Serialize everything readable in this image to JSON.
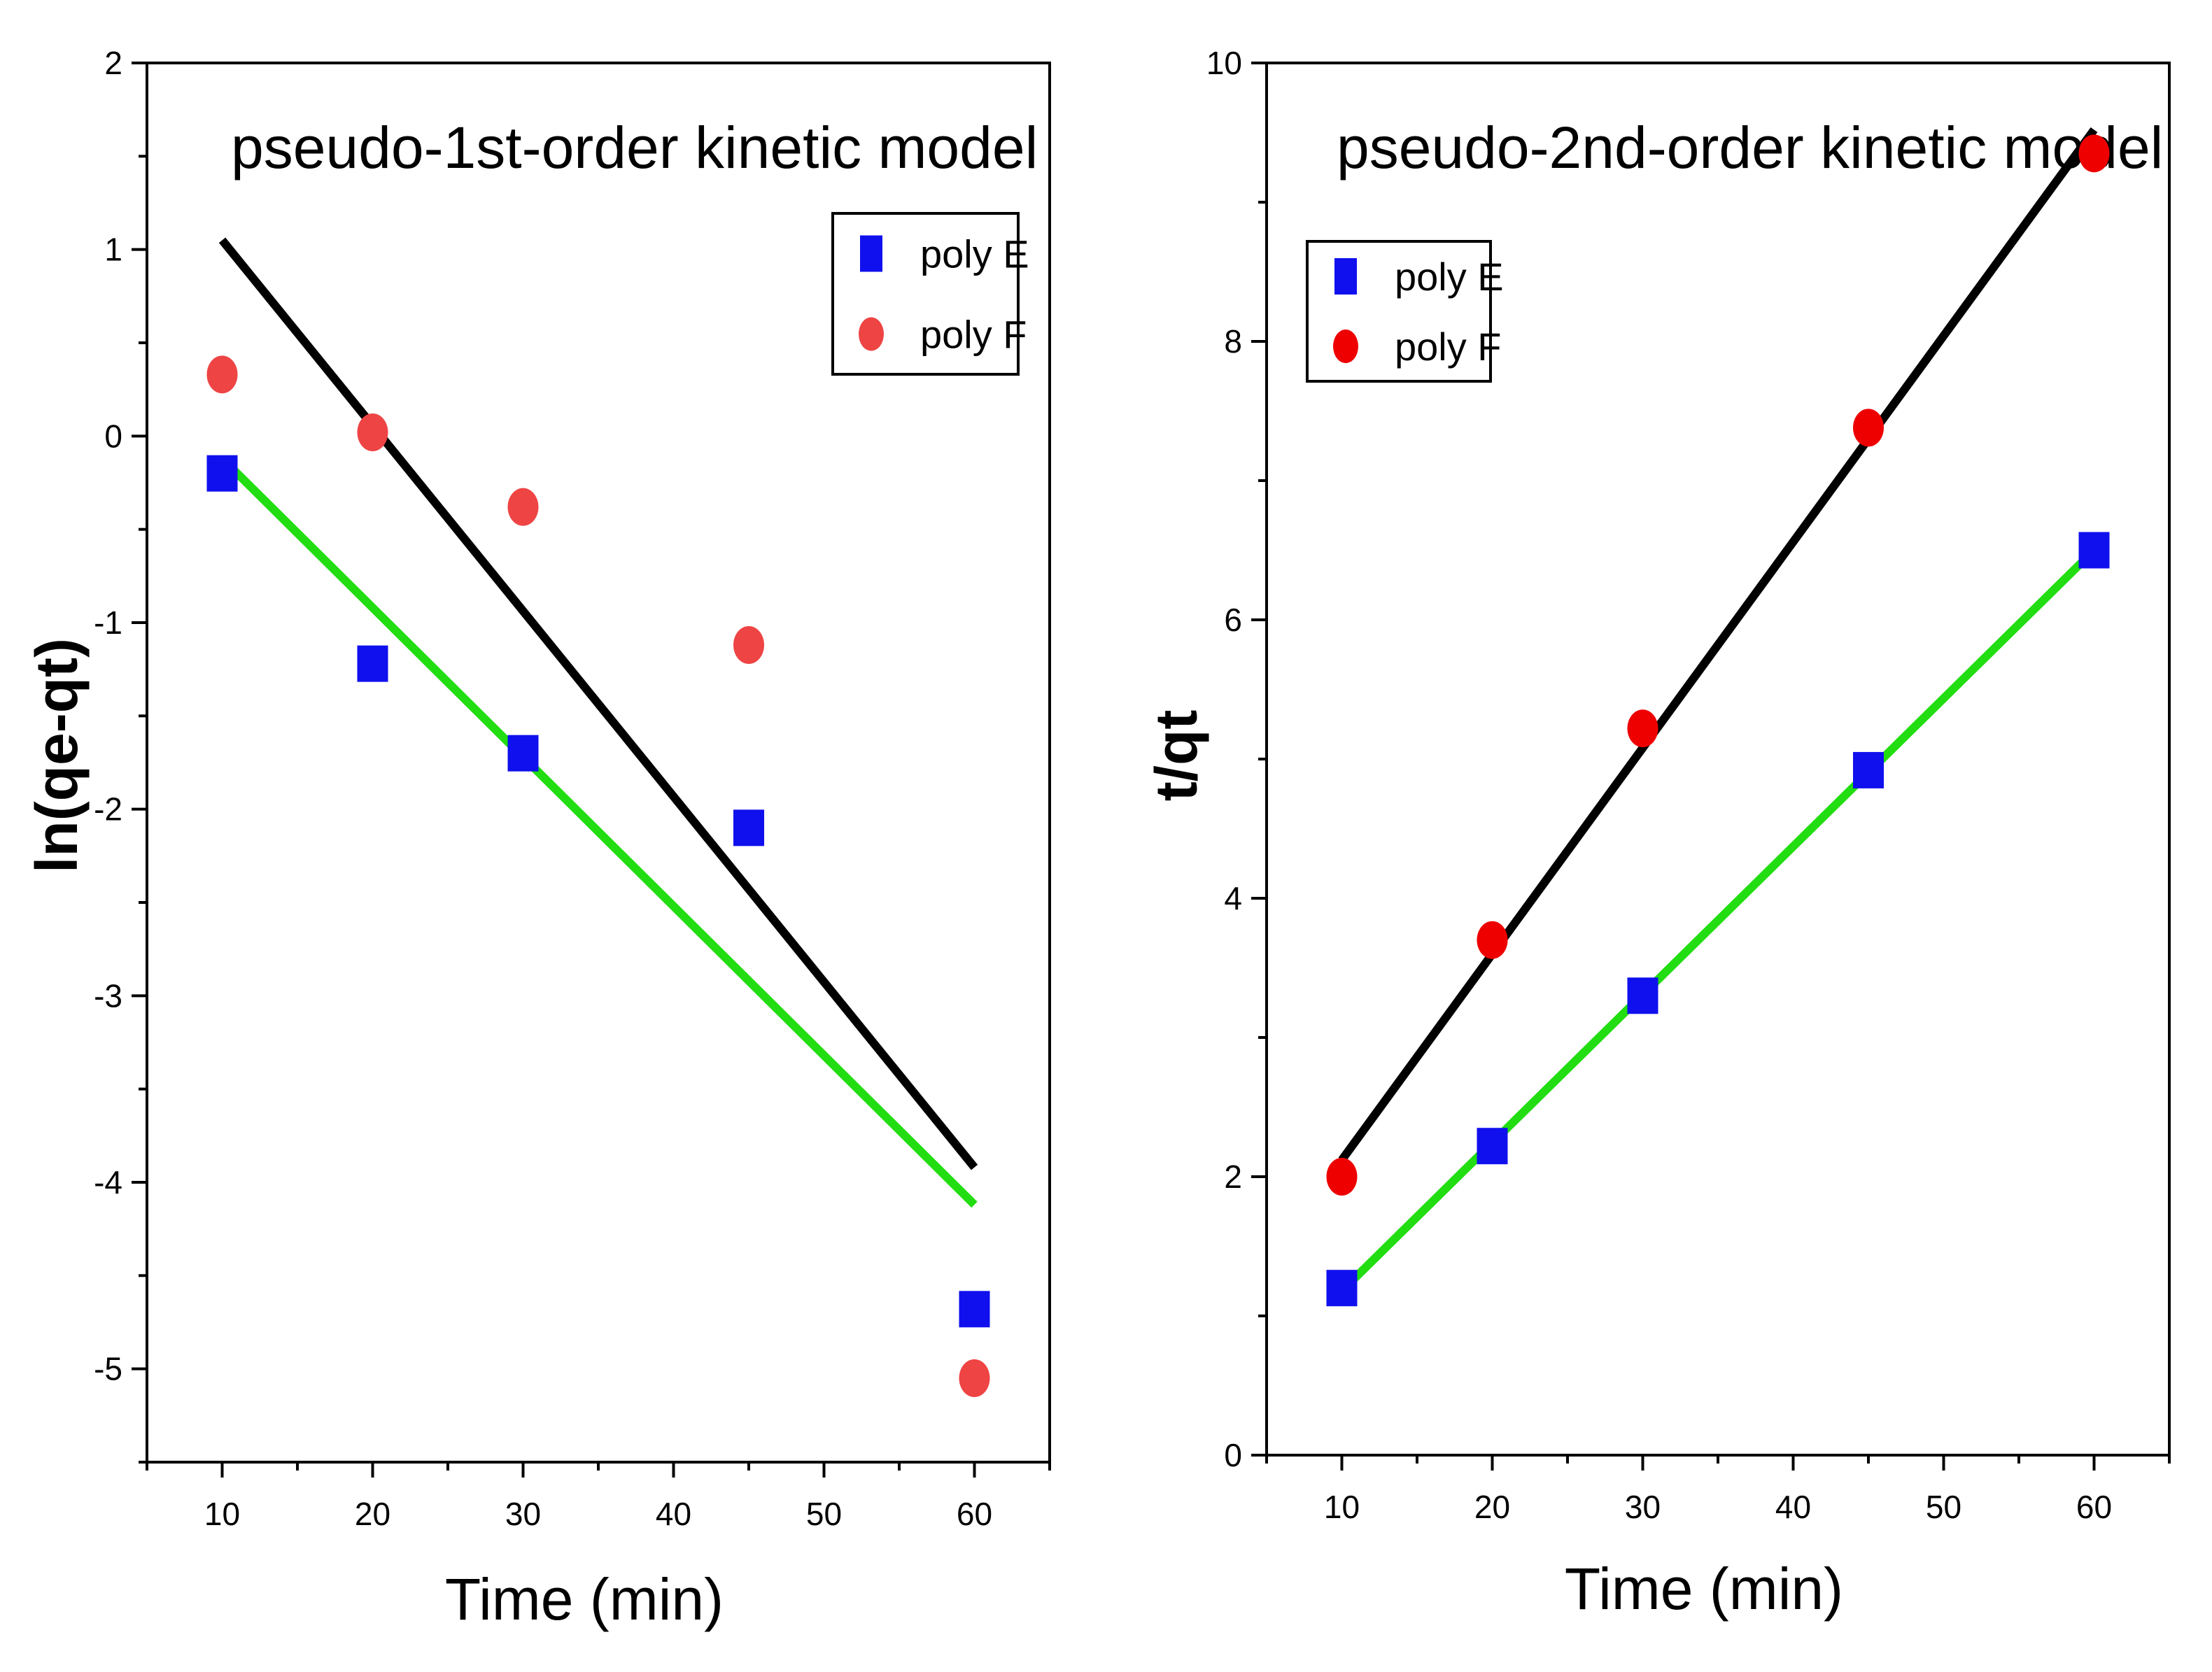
{
  "chart_data": [
    {
      "type": "scatter",
      "title": "pseudo-1st-order kinetic model",
      "xlabel": "Time (min)",
      "ylabel": "ln(qe-qt)",
      "xlim": [
        5,
        65
      ],
      "ylim": [
        -5.5,
        2
      ],
      "xticks": [
        10,
        20,
        30,
        40,
        50,
        60
      ],
      "yticks": [
        2,
        1,
        0,
        -1,
        -2,
        -3,
        -4,
        -5
      ],
      "legend": "top-right",
      "series": [
        {
          "name": "poly E",
          "marker": "square",
          "color": "#1010ee",
          "x": [
            10,
            20,
            30,
            45,
            60
          ],
          "y": [
            -0.2,
            -1.22,
            -1.7,
            -2.1,
            -4.68
          ],
          "fit": {
            "color": "#22dd11",
            "x": [
              10,
              60
            ],
            "y": [
              -0.12,
              -4.12
            ]
          }
        },
        {
          "name": "poly F",
          "marker": "circle",
          "color": "#ee4444",
          "x": [
            10,
            20,
            30,
            45,
            60
          ],
          "y": [
            0.33,
            0.02,
            -0.38,
            -1.12,
            -5.05
          ],
          "fit": {
            "color": "#000000",
            "x": [
              10,
              60
            ],
            "y": [
              1.05,
              -3.92
            ]
          }
        }
      ]
    },
    {
      "type": "scatter",
      "title": "pseudo-2nd-order kinetic model",
      "xlabel": "Time (min)",
      "ylabel": "t/qt",
      "xlim": [
        5,
        65
      ],
      "ylim": [
        0,
        10
      ],
      "xticks": [
        10,
        20,
        30,
        40,
        50,
        60
      ],
      "yticks": [
        0,
        2,
        4,
        6,
        8,
        10
      ],
      "legend": "top-left",
      "series": [
        {
          "name": "poly E",
          "marker": "square",
          "color": "#1010ee",
          "x": [
            10,
            20,
            30,
            45,
            60
          ],
          "y": [
            1.2,
            2.22,
            3.3,
            4.92,
            6.5
          ],
          "fit": {
            "color": "#22dd11",
            "x": [
              10,
              60
            ],
            "y": [
              1.18,
              6.5
            ]
          }
        },
        {
          "name": "poly F",
          "marker": "circle",
          "color": "#ee0000",
          "x": [
            10,
            20,
            30,
            45,
            60
          ],
          "y": [
            2.0,
            3.7,
            5.22,
            7.38,
            9.35
          ],
          "fit": {
            "color": "#000000",
            "x": [
              10,
              60
            ],
            "y": [
              2.12,
              9.52
            ]
          }
        }
      ]
    }
  ]
}
